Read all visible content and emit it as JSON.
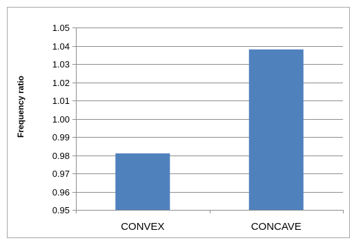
{
  "chart_data": {
    "type": "bar",
    "title": "",
    "xlabel": "",
    "ylabel": "Frequency ratio",
    "categories": [
      "CONVEX",
      "CONCAVE"
    ],
    "series": [
      {
        "values": [
          0.981,
          1.038
        ],
        "color": "#4f81bd"
      }
    ],
    "ylim": [
      0.95,
      1.05
    ],
    "yticks": [
      "0.95",
      "0.96",
      "0.97",
      "0.98",
      "0.99",
      "1.00",
      "1.01",
      "1.02",
      "1.03",
      "1.04",
      "1.05"
    ],
    "grid": "horizontal",
    "legend": "none"
  }
}
